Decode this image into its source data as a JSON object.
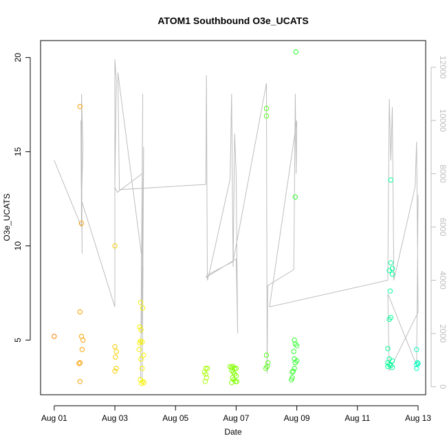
{
  "chart_data": {
    "type": "scatter",
    "title": "ATOM1 Southbound O3e_UCATS",
    "xlabel": "Date",
    "ylabel": "O3e_UCATS",
    "x_unit": "day of August",
    "xlim": [
      0.55,
      13.25
    ],
    "ylim": [
      2.1,
      20.9
    ],
    "y2lim": [
      -300,
      13000
    ],
    "x_ticks": [
      1,
      3,
      5,
      7,
      9,
      11,
      13
    ],
    "x_tick_labels": [
      "Aug 01",
      "Aug 03",
      "Aug 05",
      "Aug 07",
      "Aug 09",
      "Aug 11",
      "Aug 13"
    ],
    "y_ticks": [
      5,
      10,
      15,
      20
    ],
    "y_tick_labels": [
      "5",
      "10",
      "15",
      "20"
    ],
    "y2_ticks": [
      0,
      2000,
      4000,
      6000,
      8000,
      10000,
      12000
    ],
    "y2_tick_labels": [
      "0",
      "2000",
      "4000",
      "6000",
      "8000",
      "10000",
      "12000"
    ],
    "grid": false,
    "colors": {
      "points_by_time": [
        "#ff7f00",
        "#f5f500",
        "#80ff00",
        "#00ff40",
        "#00ffbf"
      ],
      "secondary_line": "#bdbdbd",
      "axes": "#000000"
    },
    "series": [
      {
        "marker": "open-circle",
        "points": [
          [
            1.0,
            5.2
          ],
          [
            1.85,
            17.4
          ],
          [
            1.9,
            11.2
          ],
          [
            1.85,
            6.5
          ],
          [
            1.9,
            5.2
          ],
          [
            1.95,
            5.0
          ],
          [
            1.92,
            4.5
          ],
          [
            1.85,
            3.8
          ],
          [
            1.82,
            3.75
          ],
          [
            1.85,
            2.8
          ],
          [
            3.0,
            10.0
          ],
          [
            3.0,
            4.65
          ],
          [
            3.05,
            4.4
          ],
          [
            3.02,
            4.1
          ],
          [
            3.05,
            3.5
          ],
          [
            3.0,
            3.35
          ],
          [
            3.85,
            7.0
          ],
          [
            3.92,
            6.7
          ],
          [
            3.82,
            5.7
          ],
          [
            3.86,
            5.55
          ],
          [
            3.85,
            4.95
          ],
          [
            3.9,
            4.9
          ],
          [
            3.82,
            4.85
          ],
          [
            3.8,
            4.5
          ],
          [
            3.95,
            4.2
          ],
          [
            3.86,
            4.0
          ],
          [
            3.9,
            3.5
          ],
          [
            3.84,
            2.9
          ],
          [
            3.92,
            2.8
          ],
          [
            3.88,
            2.7
          ],
          [
            3.96,
            2.75
          ],
          [
            6.0,
            3.5
          ],
          [
            6.05,
            3.5
          ],
          [
            5.95,
            3.3
          ],
          [
            6.0,
            3.2
          ],
          [
            6.02,
            3.0
          ],
          [
            5.98,
            2.8
          ],
          [
            6.8,
            3.6
          ],
          [
            6.85,
            3.55
          ],
          [
            6.9,
            3.6
          ],
          [
            6.95,
            3.5
          ],
          [
            7.0,
            3.5
          ],
          [
            6.85,
            3.4
          ],
          [
            6.9,
            3.3
          ],
          [
            6.95,
            3.2
          ],
          [
            7.0,
            3.1
          ],
          [
            6.88,
            3.0
          ],
          [
            6.92,
            2.9
          ],
          [
            6.98,
            2.8
          ],
          [
            6.85,
            2.75
          ],
          [
            7.02,
            2.8
          ],
          [
            8.0,
            17.3
          ],
          [
            8.0,
            16.9
          ],
          [
            8.0,
            4.2
          ],
          [
            8.05,
            3.8
          ],
          [
            8.02,
            3.6
          ],
          [
            7.98,
            3.5
          ],
          [
            8.97,
            20.3
          ],
          [
            8.95,
            12.6
          ],
          [
            8.92,
            5.0
          ],
          [
            8.95,
            4.8
          ],
          [
            9.0,
            4.7
          ],
          [
            8.9,
            4.4
          ],
          [
            8.92,
            4.0
          ],
          [
            9.0,
            3.9
          ],
          [
            8.95,
            3.8
          ],
          [
            8.92,
            3.5
          ],
          [
            8.88,
            3.35
          ],
          [
            8.85,
            3.3
          ],
          [
            8.85,
            3.0
          ],
          [
            8.82,
            2.9
          ],
          [
            12.1,
            13.5
          ],
          [
            12.1,
            9.1
          ],
          [
            12.15,
            8.8
          ],
          [
            12.05,
            8.7
          ],
          [
            12.15,
            8.5
          ],
          [
            12.08,
            7.6
          ],
          [
            12.1,
            6.2
          ],
          [
            12.05,
            6.1
          ],
          [
            12.0,
            4.55
          ],
          [
            12.05,
            4.0
          ],
          [
            12.15,
            3.9
          ],
          [
            12.0,
            3.8
          ],
          [
            12.05,
            3.7
          ],
          [
            12.1,
            3.65
          ],
          [
            12.0,
            3.6
          ],
          [
            12.15,
            3.55
          ],
          [
            12.95,
            4.5
          ],
          [
            12.98,
            3.8
          ],
          [
            13.0,
            3.75
          ],
          [
            12.95,
            3.7
          ],
          [
            12.95,
            3.5
          ]
        ]
      },
      {
        "axis": "right",
        "type": "line",
        "x": [
          1.0,
          1.9,
          1.88,
          1.92,
          1.9,
          1.95,
          1.9,
          3.0,
          3.0,
          3.05,
          3.0,
          3.08,
          3.9,
          3.85,
          3.92,
          3.88,
          3.95,
          3.9,
          3.93,
          3.1,
          3.15,
          6.0,
          6.02,
          6.05,
          6.1,
          6.8,
          6.85,
          6.9,
          6.95,
          7.0,
          7.05,
          7.0,
          6.0,
          6.05,
          6.9,
          6.95,
          8.0,
          8.02,
          8.04,
          8.05,
          8.9,
          8.95,
          8.98,
          9.0,
          8.1,
          12.0,
          12.05,
          12.1,
          12.15,
          12.2,
          12.9,
          12.95,
          13.0,
          12.05,
          12.0,
          12.95,
          13.0
        ],
        "y": [
          8500,
          6000,
          10000,
          5000,
          11000,
          9000,
          7000,
          3000,
          12300,
          11500,
          7500,
          7300,
          8000,
          300,
          11000,
          2000,
          9000,
          200,
          4500,
          11800,
          7400,
          7600,
          11700,
          4000,
          4200,
          7800,
          11000,
          4500,
          9500,
          8000,
          2000,
          4800,
          4100,
          4200,
          4700,
          5000,
          11400,
          500,
          3800,
          3800,
          4400,
          11000,
          8000,
          10000,
          3000,
          4000,
          10800,
          8500,
          10500,
          4000,
          7500,
          9200,
          2800,
          600,
          3500,
          800,
          7200
        ]
      }
    ]
  }
}
